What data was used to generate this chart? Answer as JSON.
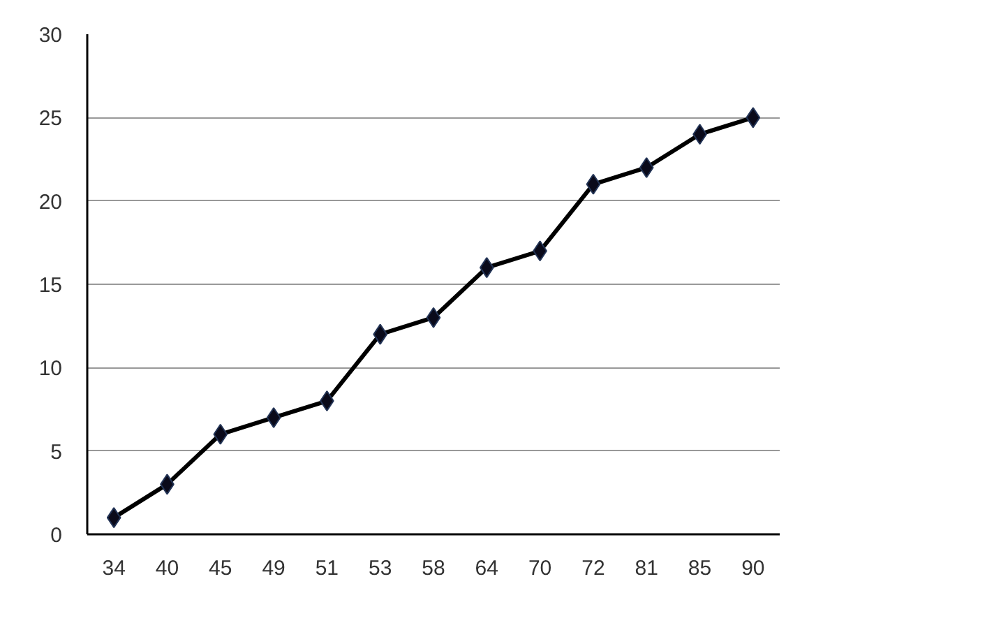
{
  "chart_data": {
    "type": "line",
    "categories": [
      "34",
      "40",
      "45",
      "49",
      "51",
      "53",
      "58",
      "64",
      "70",
      "72",
      "81",
      "85",
      "90"
    ],
    "series": [
      {
        "color": "#000000",
        "values": [
          1,
          3,
          6,
          7,
          8,
          12,
          13,
          16,
          17,
          21,
          22,
          24,
          25
        ]
      }
    ],
    "ylim": [
      0,
      30
    ],
    "yticks": [
      0,
      5,
      10,
      15,
      20,
      25,
      30
    ],
    "grid": "y",
    "marker": "diamond",
    "line_style": "solid"
  }
}
